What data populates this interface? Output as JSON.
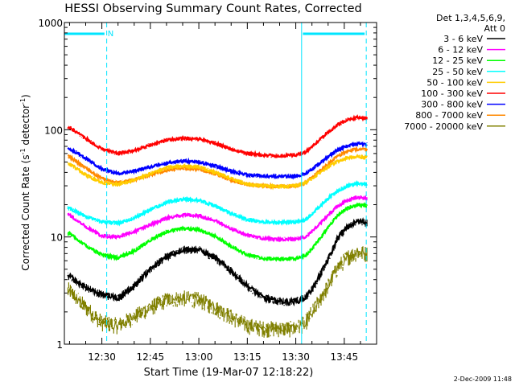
{
  "chart_data": {
    "type": "line",
    "title": "HESSI Observing Summary Count Rates, Corrected",
    "xlabel": "Start Time (19-Mar-07 12:18:22)",
    "ylabel_main": "Corrected Count Rate (s",
    "ylabel_sup1": "-1",
    "ylabel_mid": " detector",
    "ylabel_sup2": "-1",
    "ylabel_end": ")",
    "x_ticks": [
      "12:30",
      "12:45",
      "13:00",
      "13:15",
      "13:30",
      "13:45"
    ],
    "x_tick_minutes": [
      30,
      45,
      60,
      75,
      90,
      105
    ],
    "xlim_minutes": [
      18.4,
      115
    ],
    "y_scale": "log",
    "ylim": [
      1,
      1000
    ],
    "y_ticks": [
      "1",
      "10",
      "100",
      "1000"
    ],
    "legend_header_1": "Det 1,3,4,5,6,9,",
    "legend_header_2": "Att 0",
    "legend_placement": "right",
    "date_stamp": "2-Dec-2009 11:48",
    "night_label": "N",
    "vertical_lines_solid": [
      18.4,
      91.8
    ],
    "vertical_lines_dashed": [
      31.5,
      111.8
    ],
    "night_bars": [
      [
        18.5,
        30.8
      ],
      [
        92.2,
        111.3
      ]
    ],
    "series": [
      {
        "name": "3 - 6 keV",
        "color": "#000000",
        "x": [
          20,
          25,
          30,
          35,
          40,
          45,
          50,
          55,
          60,
          65,
          70,
          75,
          80,
          85,
          90,
          93,
          96,
          100,
          103,
          106,
          109,
          112
        ],
        "y": [
          4.3,
          3.4,
          2.9,
          2.7,
          3.5,
          5.0,
          6.6,
          7.6,
          7.6,
          6.4,
          4.8,
          3.5,
          2.7,
          2.5,
          2.5,
          2.7,
          3.6,
          6.2,
          9.8,
          12.3,
          14.0,
          13.6
        ]
      },
      {
        "name": "6 - 12 keV",
        "color": "#ff00ff",
        "x": [
          20,
          25,
          30,
          35,
          40,
          45,
          50,
          55,
          60,
          65,
          70,
          75,
          80,
          85,
          90,
          93,
          96,
          100,
          103,
          106,
          109,
          112
        ],
        "y": [
          16.0,
          12.5,
          10.2,
          10.0,
          11.2,
          13.0,
          15.0,
          16.0,
          15.8,
          14.2,
          12.0,
          10.4,
          9.7,
          9.5,
          9.6,
          10.0,
          12.0,
          16.0,
          19.5,
          22.0,
          23.5,
          23.0
        ]
      },
      {
        "name": "12 - 25 keV",
        "color": "#00ff00",
        "x": [
          20,
          25,
          30,
          35,
          40,
          45,
          50,
          55,
          60,
          65,
          70,
          75,
          80,
          85,
          90,
          93,
          96,
          100,
          103,
          106,
          109,
          112
        ],
        "y": [
          10.8,
          8.3,
          6.8,
          6.4,
          7.4,
          9.3,
          11.2,
          12.0,
          11.7,
          10.2,
          8.2,
          6.8,
          6.3,
          6.2,
          6.3,
          6.7,
          8.4,
          12.3,
          16.0,
          18.5,
          20.0,
          19.6
        ]
      },
      {
        "name": "25 - 50 keV",
        "color": "#00ffff",
        "x": [
          20,
          25,
          30,
          35,
          40,
          45,
          50,
          55,
          60,
          65,
          70,
          75,
          80,
          85,
          90,
          93,
          96,
          100,
          103,
          106,
          109,
          112
        ],
        "y": [
          18.5,
          15.5,
          13.8,
          13.5,
          15.0,
          18.0,
          21.0,
          22.5,
          22.0,
          19.5,
          16.5,
          14.5,
          13.8,
          13.7,
          13.8,
          14.5,
          17.5,
          23.0,
          27.0,
          30.0,
          31.5,
          31.0
        ]
      },
      {
        "name": "50 - 100 keV",
        "color": "#ffcc00",
        "x": [
          20,
          25,
          30,
          35,
          40,
          45,
          50,
          55,
          60,
          65,
          70,
          75,
          80,
          85,
          90,
          93,
          96,
          100,
          103,
          106,
          109,
          112
        ],
        "y": [
          48,
          38,
          32,
          31,
          34,
          39,
          44,
          46,
          45,
          40,
          35,
          31,
          30,
          29.5,
          30,
          32,
          37,
          45,
          51,
          55,
          56,
          55
        ]
      },
      {
        "name": "100 - 300 keV",
        "color": "#ff0000",
        "x": [
          20,
          25,
          30,
          35,
          40,
          45,
          50,
          55,
          60,
          65,
          70,
          75,
          80,
          85,
          90,
          93,
          96,
          100,
          103,
          106,
          109,
          112
        ],
        "y": [
          105,
          83,
          66,
          60,
          64,
          72,
          80,
          83,
          82,
          75,
          66,
          60,
          58,
          57,
          58,
          62,
          74,
          95,
          112,
          124,
          130,
          128
        ]
      },
      {
        "name": "300 - 800 keV",
        "color": "#0000ff",
        "x": [
          20,
          25,
          30,
          35,
          40,
          45,
          50,
          55,
          60,
          65,
          70,
          75,
          80,
          85,
          90,
          93,
          96,
          100,
          103,
          106,
          109,
          112
        ],
        "y": [
          67,
          54,
          43,
          39,
          41,
          45,
          49,
          51,
          50,
          46,
          41,
          38,
          37,
          36.5,
          37,
          39,
          45,
          56,
          65,
          71,
          74,
          73
        ]
      },
      {
        "name": "800 - 7000 keV",
        "color": "#ff8800",
        "x": [
          20,
          25,
          30,
          35,
          40,
          45,
          50,
          55,
          60,
          65,
          70,
          75,
          80,
          85,
          90,
          93,
          96,
          100,
          103,
          106,
          109,
          112
        ],
        "y": [
          56,
          44,
          35,
          32,
          34,
          38,
          42,
          44,
          43,
          39,
          34,
          31,
          30,
          29.5,
          30,
          32,
          38,
          48,
          57,
          63,
          66,
          65
        ]
      },
      {
        "name": "7000 - 20000 keV",
        "color": "#808000",
        "x": [
          20,
          25,
          30,
          35,
          40,
          45,
          50,
          55,
          60,
          65,
          70,
          75,
          80,
          85,
          90,
          93,
          96,
          100,
          103,
          106,
          109,
          112
        ],
        "y": [
          3.2,
          2.2,
          1.6,
          1.5,
          1.8,
          2.2,
          2.6,
          2.7,
          2.6,
          2.2,
          1.8,
          1.5,
          1.4,
          1.4,
          1.4,
          1.6,
          2.2,
          3.5,
          5.2,
          6.5,
          7.2,
          7.0
        ]
      }
    ]
  }
}
